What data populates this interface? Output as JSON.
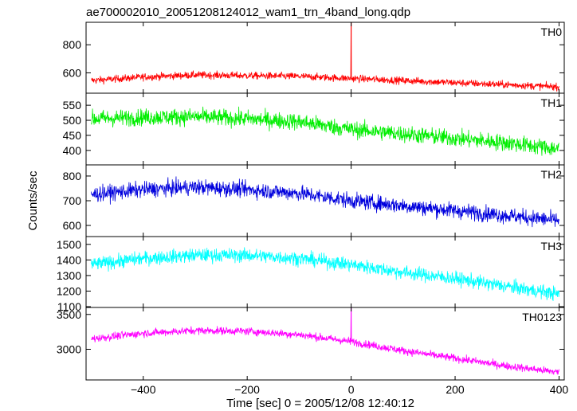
{
  "chart_data": {
    "type": "line",
    "title": "ae700002010_20051208124012_wam1_trn_4band_long.qdp",
    "xlabel": "Time [sec] 0 = 2005/12/08 12:40:12",
    "ylabel": "Counts/sec",
    "xlim": [
      -510,
      410
    ],
    "x_ticks": [
      -400,
      -200,
      0,
      200,
      400
    ],
    "grid": false,
    "panels": [
      {
        "name": "TH0",
        "color": "#ff0000",
        "ylim": [
          455,
          960
        ],
        "y_ticks": [
          600,
          800
        ],
        "noise": 28,
        "trend": [
          [
            -500,
            545
          ],
          [
            -400,
            570
          ],
          [
            -300,
            585
          ],
          [
            -200,
            580
          ],
          [
            -100,
            575
          ],
          [
            0,
            560
          ],
          [
            100,
            545
          ],
          [
            200,
            530
          ],
          [
            300,
            515
          ],
          [
            400,
            500
          ]
        ],
        "spikes": [
          [
            0,
            960
          ]
        ]
      },
      {
        "name": "TH1",
        "color": "#00ee00",
        "ylim": [
          352,
          590
        ],
        "y_ticks": [
          400,
          450,
          500,
          550
        ],
        "noise": 30,
        "trend": [
          [
            -500,
            505
          ],
          [
            -400,
            510
          ],
          [
            -300,
            512
          ],
          [
            -200,
            505
          ],
          [
            -100,
            495
          ],
          [
            0,
            470
          ],
          [
            100,
            455
          ],
          [
            200,
            440
          ],
          [
            300,
            425
          ],
          [
            400,
            405
          ]
        ]
      },
      {
        "name": "TH2",
        "color": "#0000dd",
        "ylim": [
          555,
          845
        ],
        "y_ticks": [
          600,
          700,
          800
        ],
        "noise": 34,
        "trend": [
          [
            -500,
            725
          ],
          [
            -400,
            745
          ],
          [
            -300,
            755
          ],
          [
            -200,
            745
          ],
          [
            -100,
            730
          ],
          [
            0,
            700
          ],
          [
            100,
            680
          ],
          [
            200,
            660
          ],
          [
            300,
            640
          ],
          [
            400,
            620
          ]
        ]
      },
      {
        "name": "TH3",
        "color": "#00ffff",
        "ylim": [
          1095,
          1550
        ],
        "y_ticks": [
          1100,
          1200,
          1300,
          1400,
          1500
        ],
        "noise": 48,
        "trend": [
          [
            -500,
            1370
          ],
          [
            -400,
            1410
          ],
          [
            -300,
            1430
          ],
          [
            -200,
            1430
          ],
          [
            -100,
            1410
          ],
          [
            0,
            1370
          ],
          [
            100,
            1320
          ],
          [
            200,
            1280
          ],
          [
            300,
            1230
          ],
          [
            400,
            1180
          ]
        ]
      },
      {
        "name": "TH0123",
        "color": "#ff00ff",
        "ylim": [
          2560,
          3600
        ],
        "y_ticks": [
          3000,
          3500
        ],
        "noise": 60,
        "trend": [
          [
            -500,
            3150
          ],
          [
            -400,
            3230
          ],
          [
            -300,
            3270
          ],
          [
            -200,
            3260
          ],
          [
            -100,
            3210
          ],
          [
            0,
            3110
          ],
          [
            100,
            2980
          ],
          [
            200,
            2870
          ],
          [
            300,
            2760
          ],
          [
            400,
            2670
          ]
        ],
        "spikes": [
          [
            0,
            3600
          ]
        ]
      }
    ]
  }
}
